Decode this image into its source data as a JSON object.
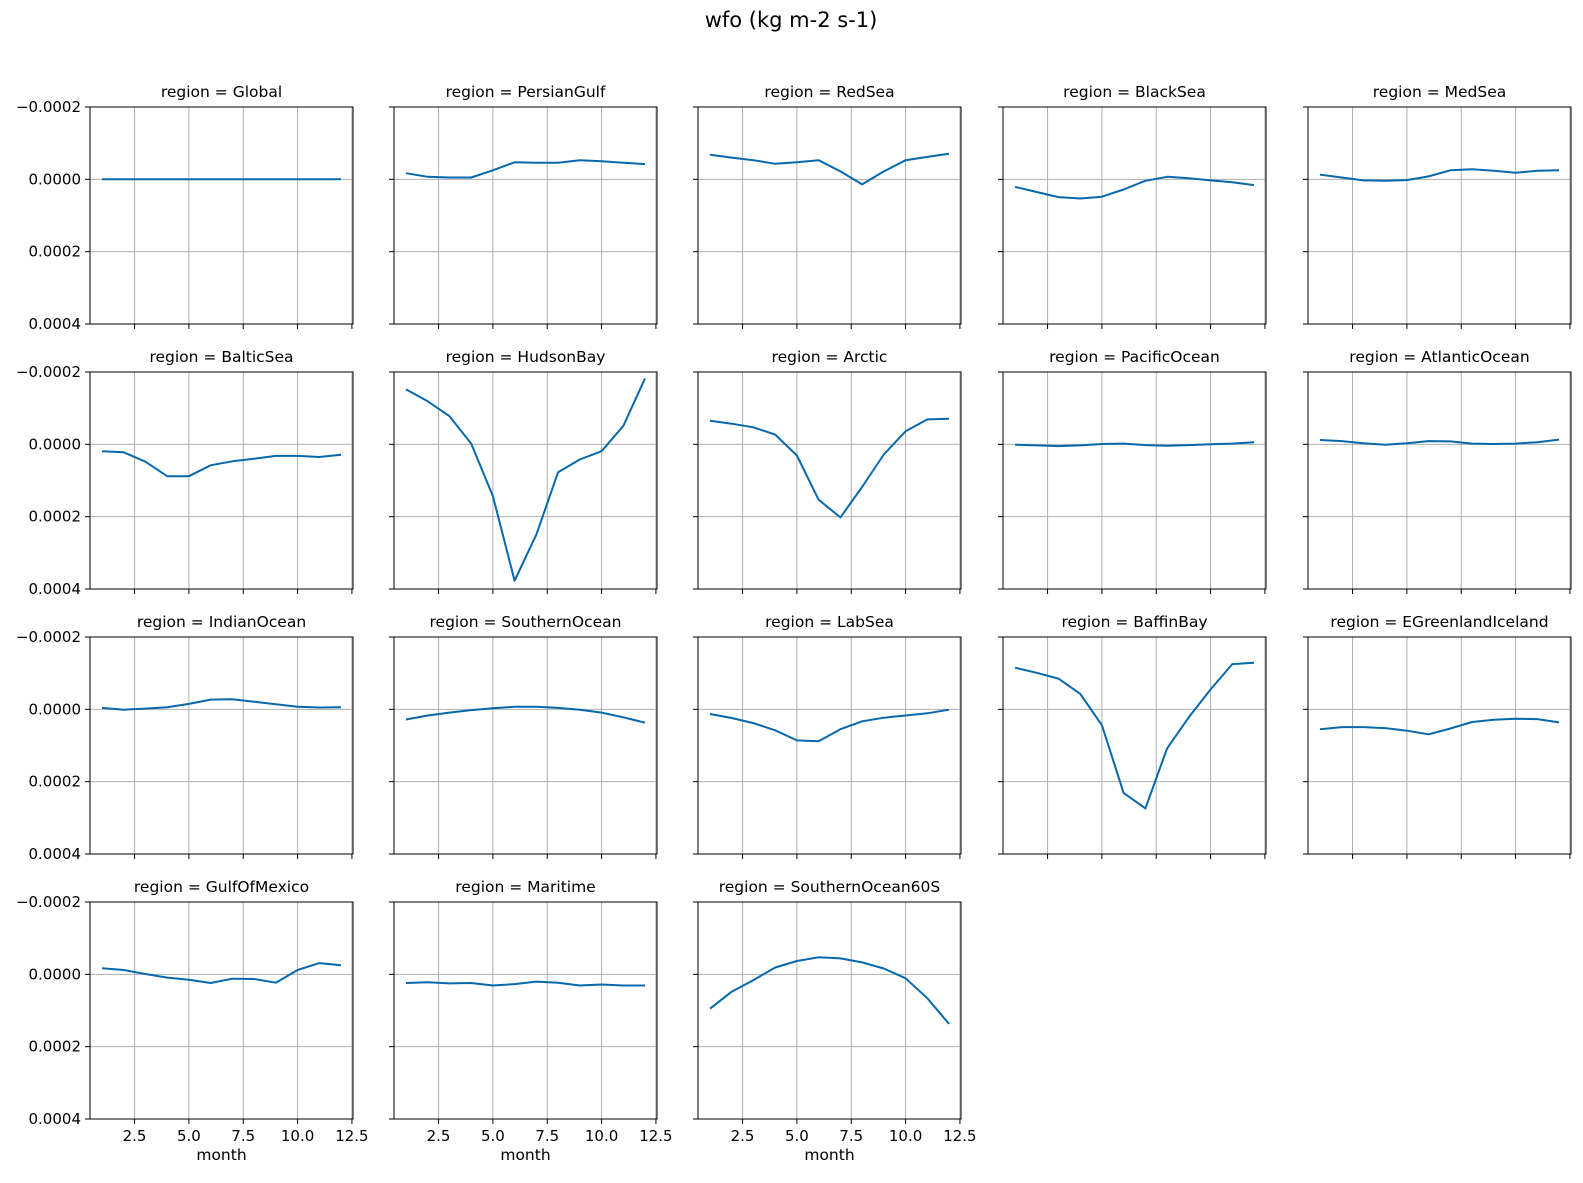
{
  "chart_data": {
    "type": "line",
    "title": "wfo (kg m-2 s-1)",
    "layout": "facet grid, 5 columns x 4 rows, shared x and y axes",
    "xlabel": "month",
    "ylabel": "",
    "x": [
      1,
      2,
      3,
      4,
      5,
      6,
      7,
      8,
      9,
      10,
      11,
      12
    ],
    "xlim": [
      0.45,
      12.55
    ],
    "xticks": [
      2.5,
      5.0,
      7.5,
      10.0,
      12.5
    ],
    "xtick_labels": [
      "2.5",
      "5.0",
      "7.5",
      "10.0",
      "12.5"
    ],
    "ylim": [
      0.0004,
      -0.0002
    ],
    "y_inverted": true,
    "yticks": [
      -0.0002,
      0.0,
      0.0002,
      0.0004
    ],
    "ytick_labels": [
      "−0.0002",
      "0.0000",
      "0.0002",
      "0.0004"
    ],
    "grid": true,
    "line_color": "#0868ac",
    "panel_title_prefix": "region = ",
    "panels": [
      {
        "region": "Global",
        "values": [
          0,
          0,
          0,
          0,
          0,
          0,
          0,
          0,
          0,
          0,
          0,
          0
        ]
      },
      {
        "region": "PersianGulf",
        "values": [
          -1.7e-05,
          -7e-06,
          -5e-06,
          -5e-06,
          -2.5e-05,
          -4.7e-05,
          -4.6e-05,
          -4.6e-05,
          -5.3e-05,
          -5e-05,
          -4.6e-05,
          -4.2e-05
        ]
      },
      {
        "region": "RedSea",
        "values": [
          -6.8e-05,
          -6e-05,
          -5.3e-05,
          -4.3e-05,
          -4.7e-05,
          -5.3e-05,
          -2.2e-05,
          1.4e-05,
          -2.2e-05,
          -5.3e-05,
          -6.2e-05,
          -7.1e-05
        ]
      },
      {
        "region": "BlackSea",
        "values": [
          2.1e-05,
          3.5e-05,
          4.9e-05,
          5.3e-05,
          4.8e-05,
          2.8e-05,
          4e-06,
          -7e-06,
          -3e-06,
          3e-06,
          8e-06,
          1.6e-05
        ]
      },
      {
        "region": "MedSea",
        "values": [
          -1.3e-05,
          -5e-06,
          3e-06,
          4e-06,
          2e-06,
          -8e-06,
          -2.5e-05,
          -2.8e-05,
          -2.4e-05,
          -1.8e-05,
          -2.4e-05,
          -2.5e-05
        ]
      },
      {
        "region": "BalticSea",
        "values": [
          1.9e-05,
          2.2e-05,
          4.8e-05,
          8.8e-05,
          8.8e-05,
          5.8e-05,
          4.7e-05,
          4e-05,
          3.2e-05,
          3.2e-05,
          3.5e-05,
          2.9e-05
        ]
      },
      {
        "region": "HudsonBay",
        "values": [
          -0.000152,
          -0.000119,
          -7.8e-05,
          -2e-06,
          0.000143,
          0.000377,
          0.000249,
          7.7e-05,
          4.2e-05,
          1.9e-05,
          -5.1e-05,
          -0.000182
        ]
      },
      {
        "region": "Arctic",
        "values": [
          -6.5e-05,
          -5.7e-05,
          -4.7e-05,
          -2.7e-05,
          3.1e-05,
          0.000153,
          0.000202,
          0.000118,
          2.8e-05,
          -3.6e-05,
          -6.9e-05,
          -7.1e-05
        ]
      },
      {
        "region": "PacificOcean",
        "values": [
          1e-06,
          3e-06,
          5e-06,
          3e-06,
          -1e-06,
          -2e-06,
          2e-06,
          4e-06,
          2e-06,
          0,
          -2e-06,
          -6e-06
        ]
      },
      {
        "region": "AtlanticOcean",
        "values": [
          -1.2e-05,
          -9e-06,
          -3e-06,
          1e-06,
          -3e-06,
          -9e-06,
          -8e-06,
          -2e-06,
          -1e-06,
          -2e-06,
          -6e-06,
          -1.3e-05
        ]
      },
      {
        "region": "IndianOcean",
        "values": [
          -4e-06,
          1e-06,
          -2e-06,
          -6e-06,
          -1.5e-05,
          -2.7e-05,
          -2.8e-05,
          -2.1e-05,
          -1.4e-05,
          -7e-06,
          -5e-06,
          -6e-06
        ]
      },
      {
        "region": "SouthernOcean",
        "values": [
          2.8e-05,
          1.7e-05,
          9e-06,
          2e-06,
          -3e-06,
          -7e-06,
          -7e-06,
          -4e-06,
          1e-06,
          9e-06,
          2.2e-05,
          3.7e-05
        ]
      },
      {
        "region": "LabSea",
        "values": [
          1.3e-05,
          2.4e-05,
          3.8e-05,
          5.8e-05,
          8.6e-05,
          8.8e-05,
          5.5e-05,
          3.3e-05,
          2.3e-05,
          1.7e-05,
          1.1e-05,
          1e-06
        ]
      },
      {
        "region": "BaffinBay",
        "values": [
          -0.000115,
          -0.000101,
          -8.5e-05,
          -4.3e-05,
          4.4e-05,
          0.000231,
          0.000274,
          0.000108,
          2.2e-05,
          -5.5e-05,
          -0.000125,
          -0.000129
        ]
      },
      {
        "region": "EGreenlandIceland",
        "values": [
          5.5e-05,
          4.9e-05,
          4.9e-05,
          5.2e-05,
          5.9e-05,
          6.9e-05,
          5.3e-05,
          3.5e-05,
          2.9e-05,
          2.6e-05,
          2.7e-05,
          3.6e-05
        ]
      },
      {
        "region": "GulfOfMexico",
        "values": [
          -1.7e-05,
          -1.2e-05,
          -1e-06,
          9e-06,
          1.5e-05,
          2.4e-05,
          1.2e-05,
          1.3e-05,
          2.3e-05,
          -1.2e-05,
          -3.1e-05,
          -2.5e-05
        ]
      },
      {
        "region": "Maritime",
        "values": [
          2.4e-05,
          2.2e-05,
          2.5e-05,
          2.4e-05,
          3.1e-05,
          2.7e-05,
          2e-05,
          2.3e-05,
          3.1e-05,
          2.8e-05,
          3.1e-05,
          3.1e-05
        ]
      },
      {
        "region": "SouthernOcean60S",
        "values": [
          9.5e-05,
          4.8e-05,
          1.6e-05,
          -1.9e-05,
          -3.7e-05,
          -4.7e-05,
          -4.4e-05,
          -3.3e-05,
          -1.6e-05,
          1.1e-05,
          6.6e-05,
          0.000137
        ]
      }
    ]
  }
}
